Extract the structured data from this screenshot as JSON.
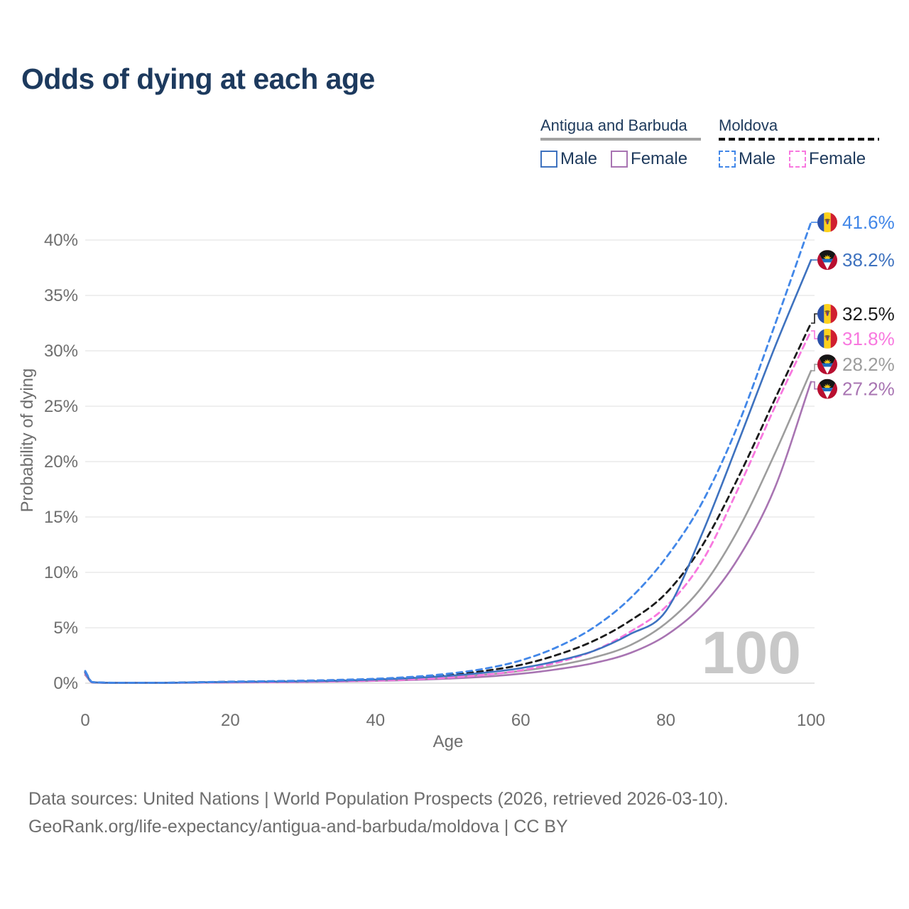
{
  "title": "Odds of dying at each age",
  "legend": {
    "groups": [
      {
        "name": "Antigua and Barbuda",
        "line_style": "solid",
        "underline_color": "#a2a2a2",
        "items": [
          {
            "label": "Male",
            "color": "#3e72bf"
          },
          {
            "label": "Female",
            "color": "#a874b2"
          }
        ]
      },
      {
        "name": "Moldova",
        "line_style": "dashed",
        "underline_color": "#141414",
        "items": [
          {
            "label": "Male",
            "color": "#4287e8"
          },
          {
            "label": "Female",
            "color": "#f878df"
          }
        ]
      }
    ]
  },
  "watermark": "100",
  "footer": {
    "line1": "Data sources: United Nations | World Population Prospects (2026, retrieved 2026-03-10).",
    "line2": "GeoRank.org/life-expectancy/antigua-and-barbuda/moldova | CC BY"
  },
  "chart_data": {
    "type": "line",
    "title": "Odds of dying at each age",
    "xlabel": "Age",
    "ylabel": "Probability of dying",
    "xlim": [
      0,
      100
    ],
    "ylim_pct": [
      0,
      42
    ],
    "x_ticks": [
      0,
      20,
      40,
      60,
      80,
      100
    ],
    "y_tick_values_pct": [
      0,
      5,
      10,
      15,
      20,
      25,
      30,
      35,
      40
    ],
    "y_tick_labels": [
      "0%",
      "5%",
      "10%",
      "15%",
      "20%",
      "25%",
      "30%",
      "35%",
      "40%"
    ],
    "grid": "horizontal-only",
    "legend_position": "top-right",
    "ages": [
      0,
      1,
      5,
      10,
      15,
      20,
      25,
      30,
      35,
      40,
      45,
      50,
      55,
      60,
      65,
      70,
      75,
      80,
      85,
      90,
      95,
      100
    ],
    "series": [
      {
        "name": "Moldova — Male",
        "country": "Moldova",
        "sex": "Male",
        "color": "#4287e8",
        "dashed": true,
        "flag": "moldova",
        "end_label": "41.6%",
        "end_value_pct": 41.6,
        "values_pct": [
          1.1,
          0.1,
          0.04,
          0.04,
          0.08,
          0.14,
          0.18,
          0.23,
          0.3,
          0.4,
          0.57,
          0.85,
          1.3,
          2.05,
          3.25,
          5.0,
          7.6,
          11.3,
          16.3,
          23.4,
          32.3,
          41.6
        ]
      },
      {
        "name": "Antigua and Barbuda — Male",
        "country": "Antigua and Barbuda",
        "sex": "Male",
        "color": "#3e72bf",
        "dashed": false,
        "flag": "antigua",
        "end_label": "38.2%",
        "end_value_pct": 38.2,
        "values_pct": [
          0.95,
          0.08,
          0.03,
          0.03,
          0.07,
          0.11,
          0.14,
          0.17,
          0.23,
          0.33,
          0.46,
          0.66,
          0.95,
          1.35,
          2.0,
          2.9,
          4.4,
          6.5,
          13.5,
          21.8,
          30.3,
          38.2
        ]
      },
      {
        "name": "Moldova — Both sexes",
        "country": "Moldova",
        "sex": "Both sexes",
        "color": "#1b1b1b",
        "dashed": true,
        "flag": "moldova",
        "end_label": "32.5%",
        "end_value_pct": 32.5,
        "values_pct": [
          1.0,
          0.09,
          0.035,
          0.035,
          0.075,
          0.12,
          0.16,
          0.2,
          0.26,
          0.35,
          0.5,
          0.73,
          1.1,
          1.65,
          2.55,
          3.8,
          5.6,
          8.1,
          12.4,
          18.6,
          25.6,
          32.5
        ]
      },
      {
        "name": "Moldova — Female",
        "country": "Moldova",
        "sex": "Female",
        "color": "#f878df",
        "dashed": true,
        "flag": "moldova",
        "end_label": "31.8%",
        "end_value_pct": 31.8,
        "values_pct": [
          0.9,
          0.07,
          0.03,
          0.03,
          0.05,
          0.07,
          0.09,
          0.12,
          0.17,
          0.24,
          0.34,
          0.5,
          0.75,
          1.15,
          1.85,
          2.9,
          4.6,
          6.9,
          11.0,
          17.6,
          24.9,
          31.8
        ]
      },
      {
        "name": "Antigua and Barbuda — Both sexes",
        "country": "Antigua and Barbuda",
        "sex": "Both sexes",
        "color": "#9d9d9d",
        "dashed": false,
        "flag": "antigua",
        "end_label": "28.2%",
        "end_value_pct": 28.2,
        "values_pct": [
          0.85,
          0.07,
          0.03,
          0.03,
          0.06,
          0.09,
          0.12,
          0.14,
          0.19,
          0.27,
          0.38,
          0.54,
          0.76,
          1.1,
          1.6,
          2.3,
          3.4,
          5.4,
          8.7,
          13.9,
          20.7,
          28.2
        ]
      },
      {
        "name": "Antigua and Barbuda — Female",
        "country": "Antigua and Barbuda",
        "sex": "Female",
        "color": "#a874b2",
        "dashed": false,
        "flag": "antigua",
        "end_label": "27.2%",
        "end_value_pct": 27.2,
        "values_pct": [
          0.75,
          0.06,
          0.025,
          0.025,
          0.045,
          0.07,
          0.09,
          0.11,
          0.15,
          0.21,
          0.29,
          0.41,
          0.58,
          0.85,
          1.25,
          1.8,
          2.7,
          4.3,
          7.0,
          11.3,
          17.6,
          27.2
        ]
      }
    ]
  },
  "colors": {
    "title_text": "#1d3a5e",
    "legend_text": "#1e3a5c",
    "axis_text": "#6e6e6e",
    "gridline": "#eaeaea",
    "baseline": "#dcdcdc",
    "watermark": "#c8c8c8",
    "footer_text": "#6d6d6d"
  }
}
